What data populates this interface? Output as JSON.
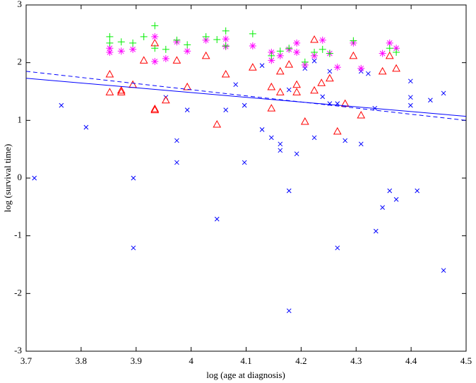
{
  "chart_data": {
    "type": "scatter",
    "xlabel": "log (age at diagnosis)",
    "ylabel": "log (survival time)",
    "xlim": [
      3.7,
      4.5
    ],
    "ylim": [
      -3,
      3
    ],
    "xticks": [
      3.7,
      3.8,
      3.9,
      4,
      4.1,
      4.2,
      4.3,
      4.4,
      4.5
    ],
    "yticks": [
      -3,
      -2,
      -1,
      0,
      1,
      2,
      3
    ],
    "series": [
      {
        "color": "#0000ff",
        "marker": "x",
        "x": [
          3.715,
          3.764,
          3.809,
          3.895,
          3.895,
          3.954,
          3.974,
          3.974,
          3.993,
          4.047,
          4.063,
          4.081,
          4.097,
          4.097,
          4.129,
          4.129,
          4.146,
          4.162,
          4.162,
          4.178,
          4.178,
          4.178,
          4.192,
          4.207,
          4.224,
          4.224,
          4.239,
          4.252,
          4.252,
          4.266,
          4.266,
          4.28,
          4.309,
          4.309,
          4.322,
          4.334,
          4.336,
          4.348,
          4.361,
          4.373,
          4.399,
          4.399,
          4.399,
          4.411,
          4.435,
          4.459,
          4.459
        ],
        "values": [
          0,
          1.26,
          0.88,
          0,
          -1.21,
          1.4,
          0.65,
          0.27,
          1.18,
          -0.71,
          1.18,
          1.62,
          1.26,
          0.27,
          1.95,
          0.84,
          0.7,
          0.59,
          0.48,
          1.53,
          -0.22,
          -2.3,
          0.42,
          1.9,
          2.03,
          0.7,
          1.41,
          1.29,
          1.85,
          -1.21,
          1.29,
          0.65,
          1.85,
          0.59,
          1.81,
          1.21,
          -0.92,
          -0.51,
          -0.22,
          -0.37,
          1.68,
          1.4,
          1.26,
          -0.22,
          1.35,
          1.47,
          -1.6
        ]
      },
      {
        "color": "#ff0000",
        "marker": "triangle",
        "x": [
          3.852,
          3.852,
          3.873,
          3.873,
          3.894,
          3.914,
          3.934,
          3.934,
          3.934,
          3.954,
          3.974,
          3.993,
          4.027,
          4.047,
          4.063,
          4.112,
          4.146,
          4.146,
          4.162,
          4.162,
          4.178,
          4.192,
          4.192,
          4.207,
          4.224,
          4.224,
          4.237,
          4.252,
          4.266,
          4.28,
          4.295,
          4.309,
          4.348,
          4.361,
          4.373
        ],
        "values": [
          1.8,
          1.49,
          1.52,
          1.49,
          1.62,
          2.04,
          1.2,
          1.18,
          2.34,
          1.35,
          2.04,
          1.58,
          2.12,
          0.93,
          1.8,
          1.92,
          1.58,
          1.21,
          1.49,
          1.85,
          1.97,
          1.62,
          1.49,
          0.98,
          2.4,
          1.52,
          1.65,
          1.73,
          0.81,
          1.29,
          2.12,
          1.09,
          1.85,
          2.12,
          1.9
        ]
      },
      {
        "color": "#ff00ff",
        "marker": "asterisk",
        "x": [
          3.852,
          3.852,
          3.873,
          3.894,
          3.934,
          3.934,
          3.954,
          3.974,
          3.993,
          4.027,
          4.063,
          4.063,
          4.112,
          4.146,
          4.146,
          4.162,
          4.178,
          4.192,
          4.192,
          4.207,
          4.224,
          4.239,
          4.252,
          4.266,
          4.295,
          4.309,
          4.348,
          4.361,
          4.373
        ],
        "values": [
          2.25,
          2.18,
          2.2,
          2.23,
          2.45,
          2.02,
          2.07,
          2.36,
          2.2,
          2.39,
          2.28,
          2.41,
          2.29,
          2.04,
          2.18,
          2.12,
          2.23,
          2.34,
          2.18,
          1.96,
          2.12,
          2.39,
          2.16,
          1.92,
          2.34,
          1.9,
          2.16,
          2.34,
          2.25
        ]
      },
      {
        "color": "#00ee00",
        "marker": "plus",
        "x": [
          3.852,
          3.852,
          3.873,
          3.894,
          3.914,
          3.934,
          3.934,
          3.954,
          3.974,
          3.993,
          4.027,
          4.047,
          4.063,
          4.063,
          4.112,
          4.146,
          4.162,
          4.178,
          4.207,
          4.224,
          4.239,
          4.252,
          4.295,
          4.361,
          4.373
        ],
        "values": [
          2.45,
          2.34,
          2.36,
          2.34,
          2.45,
          2.64,
          2.25,
          2.23,
          2.39,
          2.31,
          2.45,
          2.4,
          2.55,
          2.29,
          2.5,
          2.12,
          2.2,
          2.25,
          2.01,
          2.18,
          2.23,
          2.16,
          2.38,
          2.25,
          2.18
        ]
      },
      {
        "color": "#0000ff",
        "marker": "line",
        "linestyle": "solid",
        "x": [
          3.7,
          4.5
        ],
        "values": [
          1.73,
          1.07
        ]
      },
      {
        "color": "#0000ff",
        "marker": "line",
        "linestyle": "dashed",
        "x": [
          3.7,
          4.5
        ],
        "values": [
          1.85,
          1.0
        ]
      }
    ]
  }
}
